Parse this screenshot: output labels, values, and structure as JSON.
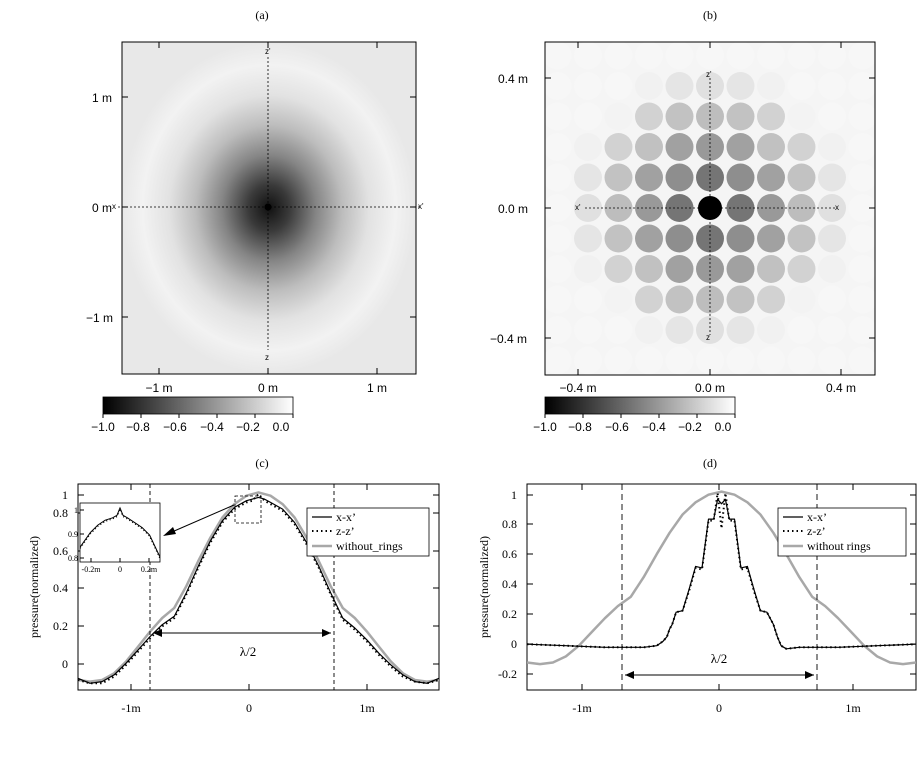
{
  "chart_data": [
    {
      "panel": "(a)",
      "type": "heatmap",
      "x_ticks": [
        "−1 m",
        "0 m",
        "1 m"
      ],
      "y_ticks": [
        "1 m",
        "0 m",
        "−1 m"
      ],
      "axis_range": [
        -1.5,
        1.5
      ],
      "line_labels": {
        "x_start": "x",
        "x_end": "x'",
        "z_top": "z'",
        "z_bottom": "z"
      },
      "colorbar": {
        "range": [
          -1.0,
          0.0
        ],
        "ticks": [
          "−1.0",
          "−0.8",
          "−0.6",
          "−0.4",
          "−0.2",
          "0.0"
        ]
      },
      "field": "smooth radial, minimum −1.0 at center"
    },
    {
      "panel": "(b)",
      "type": "heatmap",
      "x_ticks": [
        "−0.4 m",
        "0.0 m",
        "0.4 m"
      ],
      "y_ticks": [
        "0.4 m",
        "0.0 m",
        "−0.4 m"
      ],
      "axis_range": [
        -0.5,
        0.5
      ],
      "line_labels": {
        "x_start": "x'",
        "x_end": "x",
        "z_top": "z'",
        "z_bottom": "z"
      },
      "colorbar": {
        "range": [
          -1.0,
          0.0
        ],
        "ticks": [
          "−1.0",
          "−0.8",
          "−0.6",
          "−0.4",
          "−0.2",
          "0.0"
        ]
      },
      "field": "grid of circular ring cells, darkest at center"
    },
    {
      "panel": "(c)",
      "type": "line",
      "ylabel": "pressure(normalized)",
      "x_ticks": [
        "-1m",
        "0",
        "1m"
      ],
      "y_ticks": [
        "0",
        "0.2",
        "0.4",
        "0.6",
        "0.8",
        "1"
      ],
      "xlim": [
        -1.5,
        1.5
      ],
      "ylim": [
        -0.18,
        1.05
      ],
      "annotation": "λ/2",
      "half_wavelength_markers": [
        -0.74,
        0.69
      ],
      "legend": {
        "position": "top-right",
        "entries": [
          "x-x’",
          "z-z’",
          "without_rings"
        ]
      },
      "series": [
        {
          "name": "x-x’",
          "x": [
            -1.5,
            -1.4,
            -1.3,
            -1.2,
            -1.1,
            -1.0,
            -0.9,
            -0.8,
            -0.7,
            -0.6,
            -0.5,
            -0.4,
            -0.3,
            -0.2,
            -0.1,
            -0.05,
            0,
            0.05,
            0.1,
            0.2,
            0.3,
            0.4,
            0.5,
            0.6,
            0.7,
            0.8,
            0.9,
            1.0,
            1.1,
            1.2,
            1.3,
            1.4,
            1.5
          ],
          "y": [
            -0.11,
            -0.14,
            -0.13,
            -0.09,
            -0.02,
            0.06,
            0.14,
            0.21,
            0.26,
            0.4,
            0.56,
            0.71,
            0.83,
            0.91,
            0.95,
            0.96,
            0.97,
            0.96,
            0.94,
            0.9,
            0.82,
            0.7,
            0.56,
            0.4,
            0.25,
            0.19,
            0.12,
            0.04,
            -0.03,
            -0.09,
            -0.13,
            -0.14,
            -0.11
          ]
        },
        {
          "name": "z-z’",
          "x": [
            -1.5,
            -1.4,
            -1.3,
            -1.2,
            -1.1,
            -1.0,
            -0.9,
            -0.8,
            -0.7,
            -0.6,
            -0.5,
            -0.4,
            -0.3,
            -0.2,
            -0.1,
            -0.05,
            0,
            0.05,
            0.1,
            0.2,
            0.3,
            0.4,
            0.5,
            0.6,
            0.7,
            0.8,
            0.9,
            1.0,
            1.1,
            1.2,
            1.3,
            1.4,
            1.5
          ],
          "y": [
            -0.12,
            -0.14,
            -0.14,
            -0.1,
            -0.03,
            0.05,
            0.13,
            0.2,
            0.25,
            0.39,
            0.55,
            0.7,
            0.82,
            0.9,
            0.94,
            0.95,
            0.99,
            0.95,
            0.93,
            0.89,
            0.81,
            0.69,
            0.55,
            0.39,
            0.24,
            0.18,
            0.11,
            0.03,
            -0.04,
            -0.1,
            -0.13,
            -0.14,
            -0.12
          ]
        },
        {
          "name": "without_rings",
          "x": [
            -1.5,
            -1.4,
            -1.3,
            -1.2,
            -1.1,
            -1.0,
            -0.9,
            -0.8,
            -0.7,
            -0.6,
            -0.5,
            -0.4,
            -0.3,
            -0.2,
            -0.1,
            0,
            0.1,
            0.2,
            0.3,
            0.4,
            0.5,
            0.6,
            0.7,
            0.8,
            0.9,
            1.0,
            1.1,
            1.2,
            1.3,
            1.4,
            1.5
          ],
          "y": [
            -0.12,
            -0.13,
            -0.12,
            -0.08,
            -0.01,
            0.08,
            0.17,
            0.25,
            0.31,
            0.44,
            0.59,
            0.73,
            0.85,
            0.93,
            0.98,
            1.0,
            0.98,
            0.93,
            0.85,
            0.73,
            0.59,
            0.44,
            0.31,
            0.25,
            0.17,
            0.08,
            -0.01,
            -0.08,
            -0.12,
            -0.13,
            -0.12
          ]
        }
      ],
      "inset": {
        "x_ticks": [
          "-0.2m",
          "0",
          "0.2m"
        ],
        "y_ticks": [
          "1",
          "0.9",
          "0.8"
        ],
        "xlim": [
          -0.27,
          0.27
        ],
        "ylim": [
          0.78,
          1.02
        ],
        "x": [
          -0.27,
          -0.2,
          -0.15,
          -0.1,
          -0.05,
          -0.02,
          0,
          0.02,
          0.05,
          0.1,
          0.15,
          0.2,
          0.27
        ],
        "y": [
          0.84,
          0.9,
          0.93,
          0.95,
          0.96,
          0.97,
          1.0,
          0.97,
          0.96,
          0.94,
          0.92,
          0.89,
          0.8
        ]
      }
    },
    {
      "panel": "(d)",
      "type": "line",
      "ylabel": "pressure(normalized)",
      "x_ticks": [
        "-1m",
        "0",
        "1m"
      ],
      "y_ticks": [
        "-0.2",
        "0",
        "0.2",
        "0.4",
        "0.6",
        "0.8",
        "1"
      ],
      "xlim": [
        -1.5,
        1.5
      ],
      "ylim": [
        -0.3,
        1.05
      ],
      "annotation": "λ/2",
      "half_wavelength_markers": [
        -0.7,
        0.7
      ],
      "legend": {
        "position": "top-right",
        "entries": [
          "x-x’",
          "z-z’",
          "without rings"
        ]
      },
      "series": [
        {
          "name": "x-x’",
          "x": [
            -1.5,
            -1.2,
            -0.9,
            -0.6,
            -0.5,
            -0.45,
            -0.42,
            -0.4,
            -0.38,
            -0.35,
            -0.3,
            -0.25,
            -0.2,
            -0.15,
            -0.1,
            -0.06,
            -0.03,
            0,
            0.03,
            0.06,
            0.1,
            0.15,
            0.2,
            0.25,
            0.3,
            0.35,
            0.4,
            0.43,
            0.46,
            0.5,
            0.6,
            0.9,
            1.2,
            1.5
          ],
          "y": [
            0.0,
            -0.01,
            -0.02,
            -0.02,
            -0.01,
            0.02,
            0.05,
            0.1,
            0.13,
            0.21,
            0.22,
            0.36,
            0.51,
            0.5,
            0.82,
            0.82,
            0.95,
            0.92,
            0.95,
            0.82,
            0.82,
            0.5,
            0.51,
            0.36,
            0.22,
            0.21,
            0.13,
            0.05,
            -0.01,
            -0.03,
            -0.02,
            -0.02,
            -0.01,
            0.0
          ]
        },
        {
          "name": "z-z’",
          "x": [
            -1.5,
            -1.2,
            -0.9,
            -0.6,
            -0.5,
            -0.45,
            -0.42,
            -0.4,
            -0.38,
            -0.35,
            -0.3,
            -0.25,
            -0.2,
            -0.15,
            -0.1,
            -0.06,
            -0.03,
            0,
            0.03,
            0.06,
            0.1,
            0.15,
            0.2,
            0.25,
            0.3,
            0.35,
            0.4,
            0.43,
            0.46,
            0.5,
            0.6,
            0.9,
            1.2,
            1.5
          ],
          "y": [
            0.0,
            -0.01,
            -0.02,
            -0.02,
            -0.01,
            0.02,
            0.05,
            0.1,
            0.13,
            0.21,
            0.22,
            0.35,
            0.5,
            0.49,
            0.81,
            0.81,
            0.99,
            0.76,
            0.99,
            0.81,
            0.81,
            0.49,
            0.5,
            0.35,
            0.22,
            0.21,
            0.13,
            0.05,
            -0.01,
            -0.03,
            -0.02,
            -0.02,
            -0.01,
            0.0
          ]
        },
        {
          "name": "without rings",
          "x": [
            -1.5,
            -1.4,
            -1.3,
            -1.2,
            -1.1,
            -1.0,
            -0.9,
            -0.8,
            -0.7,
            -0.6,
            -0.5,
            -0.4,
            -0.3,
            -0.2,
            -0.1,
            0,
            0.1,
            0.2,
            0.3,
            0.4,
            0.5,
            0.6,
            0.7,
            0.8,
            0.9,
            1.0,
            1.1,
            1.2,
            1.3,
            1.4,
            1.5
          ],
          "y": [
            -0.12,
            -0.13,
            -0.12,
            -0.08,
            -0.01,
            0.08,
            0.17,
            0.25,
            0.31,
            0.44,
            0.59,
            0.73,
            0.85,
            0.93,
            0.98,
            1.0,
            0.98,
            0.93,
            0.85,
            0.73,
            0.59,
            0.44,
            0.31,
            0.25,
            0.17,
            0.08,
            -0.01,
            -0.08,
            -0.12,
            -0.13,
            -0.12
          ]
        }
      ]
    }
  ]
}
